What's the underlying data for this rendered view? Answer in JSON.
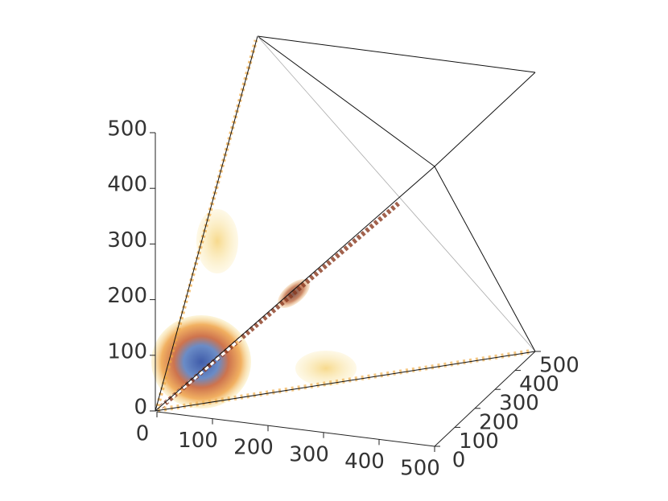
{
  "chart_data": {
    "type": "volume",
    "xlim": [
      0,
      500
    ],
    "xticks": [
      0,
      100,
      200,
      300,
      400,
      500
    ],
    "ylim": [
      0,
      500
    ],
    "yticks": [
      0,
      100,
      200,
      300,
      400,
      500
    ],
    "zlim": [
      0,
      500
    ],
    "zticks": [
      0,
      100,
      200,
      300,
      400,
      500
    ]
  }
}
